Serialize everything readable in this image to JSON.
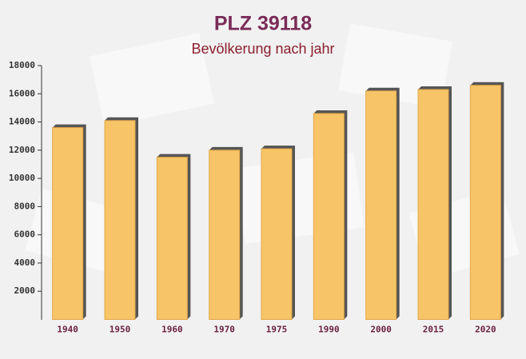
{
  "chart_data": {
    "type": "bar",
    "title": "PLZ 39118",
    "subtitle": "Bevölkerung nach jahr",
    "categories": [
      "1940",
      "1950",
      "1960",
      "1970",
      "1975",
      "1990",
      "2000",
      "2015",
      "2020"
    ],
    "values": [
      13600,
      14100,
      11500,
      12000,
      12100,
      14600,
      16200,
      16300,
      16600
    ],
    "color": "#f7c467",
    "ylim": [
      0,
      18000
    ],
    "yticks": [
      2000,
      4000,
      6000,
      8000,
      10000,
      12000,
      14000,
      16000,
      18000
    ]
  }
}
